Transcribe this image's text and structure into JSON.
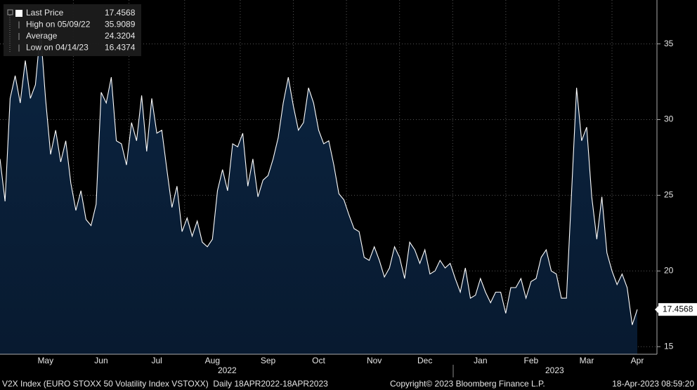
{
  "chart_data": {
    "type": "area",
    "legend_labels": [
      "Last Price",
      "High on 05/09/22",
      "Average",
      "Low on 04/14/23"
    ],
    "average": 24.3204,
    "categories": [
      null,
      null,
      null,
      null,
      null,
      null,
      null,
      null,
      null,
      "May",
      null,
      null,
      null,
      null,
      null,
      null,
      null,
      null,
      null,
      null,
      "Jun",
      null,
      null,
      null,
      null,
      null,
      null,
      null,
      null,
      null,
      null,
      "Jul",
      null,
      null,
      null,
      null,
      null,
      null,
      null,
      null,
      null,
      null,
      "Aug",
      null,
      null,
      null,
      null,
      null,
      null,
      null,
      null,
      null,
      null,
      "Sep",
      null,
      null,
      null,
      null,
      null,
      null,
      null,
      null,
      null,
      "Oct",
      null,
      null,
      null,
      null,
      null,
      null,
      null,
      null,
      null,
      null,
      "Nov",
      null,
      null,
      null,
      null,
      null,
      null,
      null,
      null,
      null,
      "Dec",
      null,
      null,
      null,
      null,
      null,
      null,
      null,
      null,
      null,
      null,
      "Jan",
      null,
      null,
      null,
      null,
      null,
      null,
      null,
      null,
      null,
      "Feb",
      null,
      null,
      null,
      null,
      null,
      null,
      null,
      null,
      null,
      null,
      "Mar",
      null,
      null,
      null,
      null,
      null,
      null,
      null,
      null,
      null,
      "Apr"
    ],
    "series": [
      {
        "name": "V2X Index",
        "color": "#ffffff",
        "fill": "#0b2440",
        "values": [
          27.4,
          24.6,
          31.4,
          32.9,
          31.1,
          33.9,
          31.4,
          32.3,
          35.9089,
          31.4,
          27.7,
          29.3,
          27.2,
          28.6,
          25.8,
          24.0,
          25.3,
          23.4,
          23.0,
          24.4,
          31.8,
          31.1,
          32.8,
          28.6,
          28.4,
          27.0,
          29.8,
          28.6,
          31.6,
          27.9,
          31.4,
          29.1,
          29.3,
          26.7,
          24.2,
          25.6,
          22.6,
          23.5,
          22.3,
          23.3,
          21.9,
          21.6,
          22.1,
          25.3,
          26.7,
          25.3,
          28.4,
          28.2,
          29.1,
          25.6,
          27.4,
          24.9,
          26.0,
          26.3,
          27.4,
          28.8,
          31.1,
          32.8,
          30.9,
          29.3,
          29.8,
          32.1,
          31.1,
          29.3,
          28.4,
          28.6,
          27.0,
          25.1,
          24.7,
          23.7,
          22.8,
          22.6,
          20.9,
          20.7,
          21.6,
          20.7,
          19.6,
          20.2,
          21.6,
          20.9,
          19.5,
          21.9,
          21.4,
          20.5,
          21.4,
          19.8,
          20.0,
          20.7,
          20.2,
          20.5,
          19.5,
          18.6,
          20.2,
          18.2,
          18.4,
          19.5,
          18.6,
          17.9,
          18.6,
          18.6,
          17.2,
          18.9,
          18.9,
          19.5,
          18.2,
          19.3,
          19.5,
          20.9,
          21.4,
          20.0,
          19.8,
          18.2,
          18.2,
          25.1,
          32.1,
          28.6,
          29.5,
          24.9,
          22.1,
          24.9,
          21.2,
          20.0,
          19.1,
          19.8,
          18.9,
          16.4374,
          17.4568
        ]
      }
    ],
    "ylim": [
      14.5,
      37.9
    ],
    "yticks": [
      15,
      20,
      25,
      30,
      35
    ],
    "grid": true,
    "year_labels": [
      "2022",
      "2023"
    ],
    "footer": {
      "left": "V2X Index (EURO STOXX 50 Volatility Index VSTOXX)  Daily 18APR2022-18APR2023",
      "center": "Copyright© 2023 Bloomberg Finance L.P.",
      "right": "18-Apr-2023 08:59:20"
    }
  }
}
